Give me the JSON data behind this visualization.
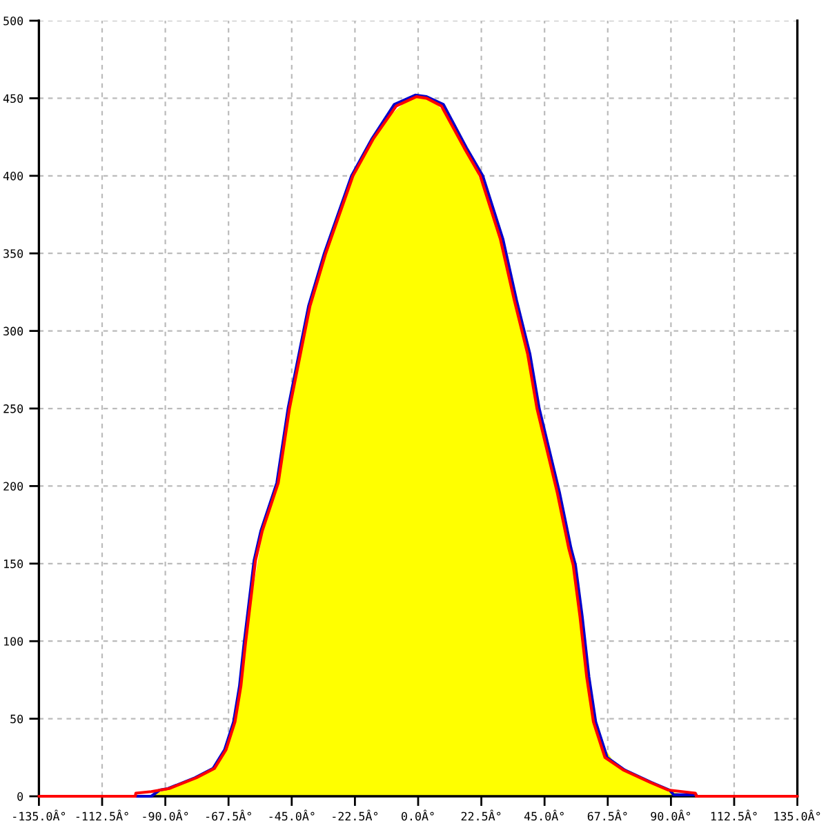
{
  "chart_data": {
    "type": "line",
    "xlim": [
      -135,
      135
    ],
    "xticks": [
      {
        "value": -135,
        "label": "-135.0Â°"
      },
      {
        "value": -112.5,
        "label": "-112.5Â°"
      },
      {
        "value": -90,
        "label": "-90.0Â°"
      },
      {
        "value": -67.5,
        "label": "-67.5Â°"
      },
      {
        "value": -45,
        "label": "-45.0Â°"
      },
      {
        "value": -22.5,
        "label": "-22.5Â°"
      },
      {
        "value": 0,
        "label": "0.0Â°"
      },
      {
        "value": 22.5,
        "label": "22.5Â°"
      },
      {
        "value": 45,
        "label": "45.0Â°"
      },
      {
        "value": 67.5,
        "label": "67.5Â°"
      },
      {
        "value": 90,
        "label": "90.0Â°"
      },
      {
        "value": 112.5,
        "label": "112.5Â°"
      },
      {
        "value": 135,
        "label": "135.0Â°"
      }
    ],
    "ylim": [
      0,
      500
    ],
    "yticks": [
      0,
      50,
      100,
      150,
      200,
      250,
      300,
      350,
      400,
      450,
      500
    ],
    "grid": true,
    "series": [
      {
        "type": "area",
        "color": "#ffff00",
        "x": [
          -100,
          -95,
          -90,
          -85,
          -80,
          -75,
          -70,
          -65,
          -60,
          -55,
          -50,
          -45,
          -40,
          -35,
          -30,
          -25,
          -20,
          -15,
          -10,
          -5,
          0,
          5,
          10,
          15,
          20,
          25,
          30,
          35,
          40,
          45,
          50,
          55,
          60,
          65,
          70,
          75,
          80,
          85,
          90,
          95,
          99
        ],
        "values": [
          0,
          1,
          4,
          8,
          11,
          16,
          24,
          50,
          120,
          174,
          201,
          257,
          302,
          337,
          365,
          391,
          410,
          427,
          439,
          447,
          451,
          449,
          440,
          423,
          407,
          383,
          353,
          314,
          275,
          228,
          191,
          150,
          77,
          35,
          21,
          15,
          11,
          8,
          3,
          1,
          0
        ]
      },
      {
        "color": "#0000cc",
        "x": [
          -100.5,
          -95,
          -92,
          -89,
          -79.4,
          -73,
          -68.9,
          -65.7,
          -63.6,
          -62,
          -60.4,
          -58.4,
          -56,
          -50.3,
          -46.3,
          -39,
          -33.4,
          -23.7,
          -16.4,
          -8.5,
          -1,
          3,
          9,
          17.2,
          23,
          30.2,
          35,
          39.8,
          43.1,
          50.3,
          54.4,
          56,
          58.4,
          60.8,
          63.2,
          67.3,
          73.5,
          83,
          89.5,
          91,
          99
        ],
        "values": [
          0,
          0,
          4,
          5,
          12,
          18,
          30,
          48,
          71,
          98,
          122,
          152,
          171,
          202,
          250,
          316,
          350,
          400,
          424,
          446,
          452,
          451,
          446,
          418,
          400,
          359,
          320,
          285,
          250,
          196,
          160,
          149,
          116,
          77,
          48,
          25,
          17,
          9,
          4,
          1,
          1
        ]
      },
      {
        "color": "#ff0000",
        "x": [
          -135,
          -100.7,
          -100.5,
          -95,
          -88.6,
          -78.9,
          -72.5,
          -68.4,
          -65.2,
          -63.1,
          -61.5,
          -59.9,
          -57.9,
          -55.5,
          -49.8,
          -45.8,
          -38.5,
          -32.9,
          -23.2,
          -15.9,
          -7.8,
          -0.6,
          3,
          8.3,
          16.4,
          22.1,
          29.3,
          34.2,
          39,
          42.3,
          49.5,
          53.6,
          55.2,
          57.6,
          60,
          62.4,
          66.5,
          73,
          82.6,
          89.1,
          98.7,
          99,
          135
        ],
        "values": [
          0,
          0,
          2,
          3,
          5,
          12,
          18,
          30,
          48,
          71,
          98,
          122,
          152,
          171,
          202,
          250,
          316,
          350,
          400,
          424,
          445,
          451,
          450,
          445,
          418,
          400,
          359,
          320,
          285,
          250,
          196,
          160,
          149,
          116,
          77,
          48,
          25,
          17,
          9,
          4,
          2,
          0,
          0
        ]
      }
    ]
  }
}
